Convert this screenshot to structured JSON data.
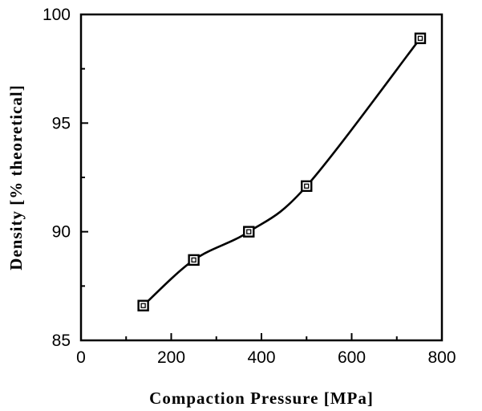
{
  "chart_data": {
    "type": "line",
    "xlabel": "Compaction Pressure [MPa]",
    "ylabel": "Density [% theoretical]",
    "xlim": [
      0,
      800
    ],
    "ylim": [
      85,
      100
    ],
    "x_ticks": [
      0,
      200,
      400,
      600,
      800
    ],
    "y_ticks": [
      85,
      90,
      95,
      100
    ],
    "grid": false,
    "series": [
      {
        "marker": "square",
        "x": [
          138,
          250,
          372,
          500,
          752
        ],
        "y": [
          86.6,
          88.7,
          90.0,
          92.1,
          98.9
        ]
      }
    ]
  }
}
